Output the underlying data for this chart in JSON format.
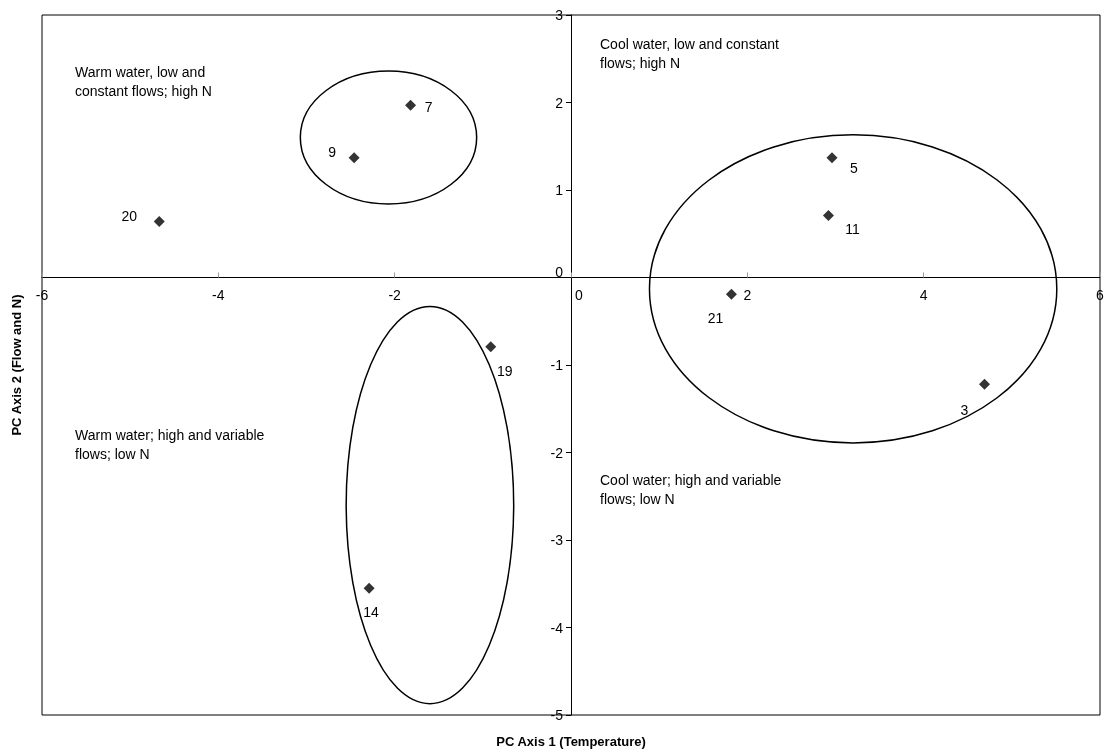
{
  "chart_data": {
    "type": "scatter",
    "xlabel": "PC Axis 1 (Temperature)",
    "ylabel": "PC Axis 2 (Flow and N)",
    "xlim": [
      -6,
      6
    ],
    "xticks": [
      -6,
      -4,
      -2,
      0,
      2,
      4,
      6
    ],
    "ylim": [
      -5,
      3
    ],
    "yticks": [
      -5,
      -4,
      -3,
      -2,
      -1,
      0,
      1,
      2,
      3
    ],
    "series": [
      {
        "color": "#000000",
        "x": [
          -1.82,
          -2.46,
          -4.67,
          -0.91,
          -2.29,
          2.96,
          2.92,
          1.82,
          4.69
        ],
        "values": [
          1.97,
          1.37,
          0.64,
          -0.79,
          -3.55,
          1.37,
          0.71,
          -0.19,
          -1.22
        ]
      }
    ],
    "marker": "diamond",
    "annotations": [
      "Warm water, low and constant flows; high N",
      "Cool water, low and constant flows; high N",
      "Warm water; high and variable flows; low N",
      "Cool water; high and variable flows; low N",
      {
        "text": "7",
        "x": -1.82,
        "y": 1.97
      },
      {
        "text": "9",
        "x": -2.46,
        "y": 1.37
      },
      {
        "text": "20",
        "x": -4.67,
        "y": 0.64
      },
      {
        "text": "19",
        "x": -0.91,
        "y": -0.79
      },
      {
        "text": "14",
        "x": -2.29,
        "y": -3.55
      },
      {
        "text": "5",
        "x": 2.96,
        "y": 1.37
      },
      {
        "text": "11",
        "x": 2.92,
        "y": 0.71
      },
      {
        "text": "21",
        "x": 1.82,
        "y": -0.19
      },
      {
        "text": "3",
        "x": 4.69,
        "y": -1.22
      }
    ]
  }
}
